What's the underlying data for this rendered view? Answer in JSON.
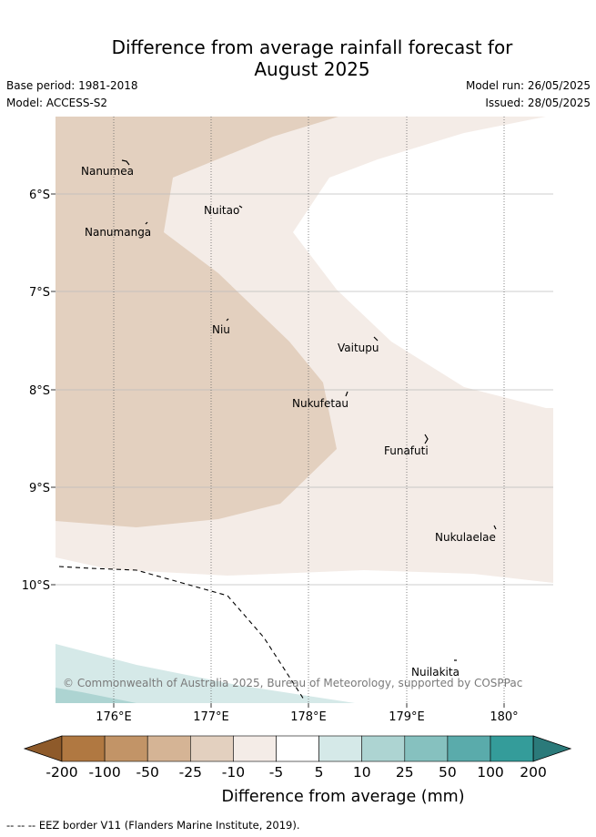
{
  "header": {
    "title_line1": "Difference from average rainfall forecast for",
    "title_line2": "August 2025",
    "base_period": "Base period: 1981-2018",
    "model": "Model: ACCESS-S2",
    "model_run": "Model run: 26/05/2025",
    "issued": "Issued: 28/05/2025"
  },
  "map": {
    "lat_labels": [
      "6°S",
      "7°S",
      "8°S",
      "9°S",
      "10°S"
    ],
    "lon_labels": [
      "176°E",
      "177°E",
      "178°E",
      "179°E",
      "180°"
    ],
    "places": [
      "Nanumea",
      "Nuitao",
      "Nanumanga",
      "Niu",
      "Vaitupu",
      "Nukufetau",
      "Funafuti",
      "Nukulaelae",
      "Nuilakita"
    ],
    "copyright": "© Commonwealth of Australia 2025, Bureau of Meteorology, supported by COSPPac",
    "colors": {
      "band_-25_-10": "#e3d0bf",
      "band_-10_-5": "#f4ece7",
      "band_-5_5": "#ffffff",
      "band_5_10": "#d5e9e8",
      "band_10_25": "#add4d2"
    }
  },
  "colorbar": {
    "ticks": [
      "-200",
      "-100",
      "-50",
      "-25",
      "-10",
      "-5",
      "5",
      "10",
      "25",
      "50",
      "100",
      "200"
    ],
    "colors": [
      "#8e5a2a",
      "#b07841",
      "#c29467",
      "#d5b495",
      "#e3d0bf",
      "#f4ece7",
      "#ffffff",
      "#d5e9e8",
      "#add4d2",
      "#86c1bf",
      "#5aabab",
      "#349c9a",
      "#2b7a7a"
    ],
    "label": "Difference from average (mm)"
  },
  "footnote": "--  --  -- EEZ border V11 (Flanders Marine Institute, 2019)."
}
